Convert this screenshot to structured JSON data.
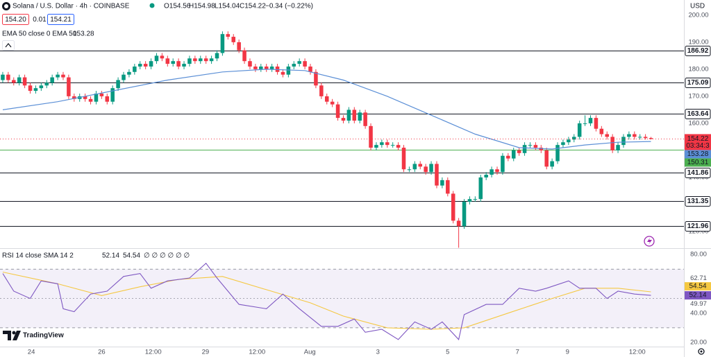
{
  "header": {
    "title": "Solana / U.S. Dollar · 4h · COINBASE",
    "ohlc": [
      "O154.56",
      "H154.98",
      "L154.04",
      "C154.22"
    ],
    "change": "−0.34 (−0.22%)",
    "sell": "154.20",
    "spread": "0.01",
    "buy": "154.21",
    "ema_legend": "EMA 50 close 0 EMA 50",
    "ema_value": "153.28",
    "rsi_legend": "RSI 14 close SMA 14 2",
    "rsi_value": "52.14",
    "sma_value": "54.54",
    "rsi_extra": "∅ ∅ ∅ ∅ ∅ ∅",
    "currency": "USD",
    "brand": "TradingView"
  },
  "chart_data": [
    {
      "type": "candlestick",
      "up_color": "#089981",
      "down_color": "#f23645",
      "xlim": [
        -0.5,
        124
      ],
      "ylim": [
        114.1,
        205.6
      ],
      "xticks": [
        {
          "value": 5.2,
          "label": "24"
        },
        {
          "value": 18.0,
          "label": "26"
        },
        {
          "value": 27.4,
          "label": "12:00"
        },
        {
          "value": 36.9,
          "label": "29"
        },
        {
          "value": 46.3,
          "label": "12:00"
        },
        {
          "value": 55.9,
          "label": "Aug"
        },
        {
          "value": 68.3,
          "label": "3"
        },
        {
          "value": 81.0,
          "label": "5"
        },
        {
          "value": 93.7,
          "label": "7"
        },
        {
          "value": 102.8,
          "label": "9"
        },
        {
          "value": 115.5,
          "label": "12:00"
        }
      ],
      "yticks": [
        {
          "value": 200,
          "label": "200.00"
        },
        {
          "value": 190,
          "label": "190.00"
        },
        {
          "value": 180,
          "label": "180.00"
        },
        {
          "value": 170,
          "label": "170.00"
        },
        {
          "value": 160,
          "label": "160.00"
        },
        {
          "value": 140,
          "label": "140.00"
        },
        {
          "value": 120,
          "label": "120.00"
        }
      ],
      "x": [
        0,
        1,
        2,
        3,
        4,
        5,
        6,
        7,
        8,
        9,
        10,
        11,
        12,
        13,
        14,
        15,
        16,
        17,
        18,
        19,
        20,
        21,
        22,
        23,
        24,
        25,
        26,
        27,
        28,
        29,
        30,
        31,
        32,
        33,
        34,
        35,
        36,
        37,
        38,
        39,
        40,
        41,
        42,
        43,
        44,
        45,
        46,
        47,
        48,
        49,
        50,
        51,
        52,
        53,
        54,
        55,
        56,
        57,
        58,
        59,
        60,
        61,
        62,
        63,
        64,
        65,
        66,
        67,
        68,
        69,
        70,
        71,
        72,
        73,
        74,
        75,
        76,
        77,
        78,
        79,
        80,
        81,
        82,
        83,
        84,
        85,
        86,
        87,
        88,
        89,
        90,
        91,
        92,
        93,
        94,
        95,
        96,
        97,
        98,
        99,
        100,
        101,
        102,
        103,
        104,
        105,
        106,
        107,
        108,
        109,
        110,
        111,
        112,
        113,
        114,
        115,
        116,
        117,
        118
      ],
      "open": [
        176,
        178,
        176,
        175,
        177,
        174,
        172,
        173,
        174,
        175,
        177,
        178,
        177,
        170,
        169,
        170,
        169,
        168,
        171,
        170,
        168,
        173,
        176,
        178,
        179,
        181,
        182,
        181,
        183,
        185,
        184,
        182,
        183,
        181,
        182,
        184,
        183,
        184,
        183,
        184,
        186,
        193,
        192,
        190,
        187,
        183,
        181,
        180,
        181,
        180,
        181,
        179,
        178,
        181,
        182,
        183,
        181,
        179,
        174,
        170,
        168,
        167,
        162,
        161,
        165,
        161,
        164,
        159,
        151,
        152,
        153,
        152,
        152,
        151,
        143,
        143,
        145,
        144,
        142,
        145,
        137,
        139,
        134,
        124,
        122,
        131,
        132,
        132,
        140,
        141,
        143,
        142,
        148,
        147,
        150,
        149,
        152,
        152,
        151,
        150,
        144,
        146,
        152,
        153,
        154,
        155,
        160,
        160,
        162,
        158,
        156,
        155,
        150,
        152,
        155,
        156,
        155,
        155,
        154.56
      ],
      "high": [
        179,
        179,
        177,
        178,
        178,
        175,
        174,
        175,
        176,
        178,
        179,
        179,
        178,
        171,
        171,
        171,
        170,
        172,
        172,
        171,
        174,
        177,
        179,
        180,
        182,
        183,
        183,
        184,
        186,
        186,
        185,
        184,
        184,
        183,
        185,
        185,
        185,
        185,
        185,
        187,
        194,
        194,
        193,
        191,
        188,
        184,
        182,
        182,
        182,
        182,
        182,
        180,
        182,
        183,
        184,
        184,
        182,
        180,
        175,
        171,
        169,
        168,
        163,
        166,
        166,
        165,
        165,
        160,
        153,
        154,
        154,
        153,
        153,
        152,
        144,
        146,
        146,
        145,
        146,
        146,
        140,
        140,
        135,
        125,
        132,
        133,
        133,
        141,
        142,
        144,
        144,
        149,
        149,
        151,
        151,
        153,
        153,
        153,
        152,
        151,
        147,
        153,
        154,
        155,
        156,
        161,
        163,
        163,
        163,
        159,
        157,
        156,
        153,
        156,
        157,
        157,
        156,
        156,
        154.98
      ],
      "low": [
        175,
        175,
        174,
        174,
        173,
        171,
        171,
        172,
        173,
        174,
        176,
        176,
        169,
        168,
        168,
        168,
        167,
        167,
        169,
        167,
        167,
        172,
        175,
        177,
        178,
        180,
        180,
        180,
        182,
        183,
        181,
        181,
        180,
        180,
        181,
        182,
        182,
        182,
        182,
        183,
        185,
        191,
        189,
        186,
        182,
        180,
        179,
        179,
        179,
        179,
        178,
        177,
        177,
        180,
        181,
        180,
        178,
        173,
        169,
        167,
        166,
        161,
        160,
        160,
        160,
        160,
        158,
        150,
        150,
        151,
        151,
        151,
        150,
        142,
        142,
        142,
        143,
        141,
        141,
        136,
        136,
        133,
        123,
        114,
        121,
        130,
        131,
        131,
        139,
        140,
        141,
        141,
        146,
        146,
        148,
        148,
        151,
        150,
        149,
        143,
        143,
        145,
        151,
        152,
        153,
        154,
        159,
        159,
        157,
        155,
        154,
        149,
        149,
        151,
        154,
        154,
        154,
        154,
        154.04
      ],
      "close": [
        178,
        176,
        175,
        177,
        174,
        172,
        173,
        174,
        175,
        177,
        178,
        177,
        170,
        169,
        170,
        169,
        168,
        171,
        170,
        168,
        173,
        176,
        178,
        179,
        181,
        182,
        181,
        183,
        185,
        184,
        182,
        183,
        181,
        182,
        184,
        183,
        184,
        183,
        184,
        186,
        193,
        192,
        190,
        187,
        183,
        181,
        180,
        181,
        180,
        181,
        179,
        178,
        181,
        182,
        183,
        181,
        179,
        174,
        170,
        168,
        167,
        162,
        161,
        165,
        161,
        164,
        159,
        151,
        152,
        153,
        152,
        152,
        151,
        143,
        143,
        145,
        144,
        142,
        145,
        137,
        139,
        134,
        124,
        122,
        131,
        132,
        132,
        140,
        141,
        143,
        142,
        148,
        147,
        150,
        149,
        152,
        152,
        151,
        150,
        144,
        146,
        152,
        153,
        154,
        155,
        160,
        160,
        162,
        158,
        156,
        155,
        150,
        152,
        155,
        156,
        155,
        155,
        154.56,
        154.22
      ],
      "ema": {
        "color": "#5b8fd6",
        "x": [
          0,
          10,
          20,
          30,
          40,
          48,
          55,
          62,
          70,
          78,
          86,
          94,
          100,
          106,
          112,
          118
        ],
        "values": [
          165,
          168,
          172,
          176,
          179,
          180,
          179.5,
          176,
          170,
          163,
          156,
          151,
          150.5,
          152,
          153,
          153.28
        ]
      },
      "levels": [
        186.92,
        175.09,
        163.64,
        141.86,
        131.35,
        121.96
      ],
      "level_color": "#131722",
      "support_line": 150.31,
      "support_color": "#4caf50",
      "countdown": "03:34:3"
    },
    {
      "type": "line",
      "xlim": [
        -0.5,
        124
      ],
      "ylim": [
        17.2,
        84.3
      ],
      "yticks": [
        {
          "value": 80,
          "label": "80.00"
        },
        62.71,
        49.97,
        {
          "value": 40,
          "label": "40.00"
        },
        {
          "value": 20,
          "label": "20.00"
        }
      ],
      "bands": [
        70,
        30
      ],
      "midline": 50,
      "band_color": "#7e57c2",
      "series": [
        {
          "color": "#7e57c2",
          "x": [
            0,
            2,
            5,
            7,
            10,
            11,
            13,
            16,
            19,
            22,
            25,
            27,
            30,
            34,
            37,
            39,
            43,
            48,
            51,
            54,
            58,
            61,
            64,
            66,
            69,
            72,
            75,
            78,
            80,
            83,
            84,
            88,
            91,
            94,
            97,
            99,
            103,
            105,
            108,
            110,
            112,
            115,
            118
          ],
          "values": [
            67,
            55,
            50,
            62,
            60,
            43,
            41,
            53,
            55,
            65,
            67,
            57,
            62,
            64,
            74,
            64,
            46,
            43,
            53,
            43,
            31,
            31,
            36,
            27,
            29,
            22,
            34,
            29,
            34,
            22,
            39,
            46,
            46,
            57,
            55,
            57,
            62,
            57,
            57,
            50,
            55,
            53,
            52.14
          ]
        },
        {
          "color": "#f5c842",
          "x": [
            0,
            10,
            18,
            25,
            32,
            40,
            48,
            56,
            62,
            70,
            78,
            84,
            92,
            100,
            106,
            112,
            118
          ],
          "values": [
            68,
            60,
            52,
            58,
            63,
            65,
            56,
            47,
            38,
            30,
            29,
            30,
            40,
            50,
            57,
            57,
            54.54
          ]
        }
      ]
    }
  ]
}
